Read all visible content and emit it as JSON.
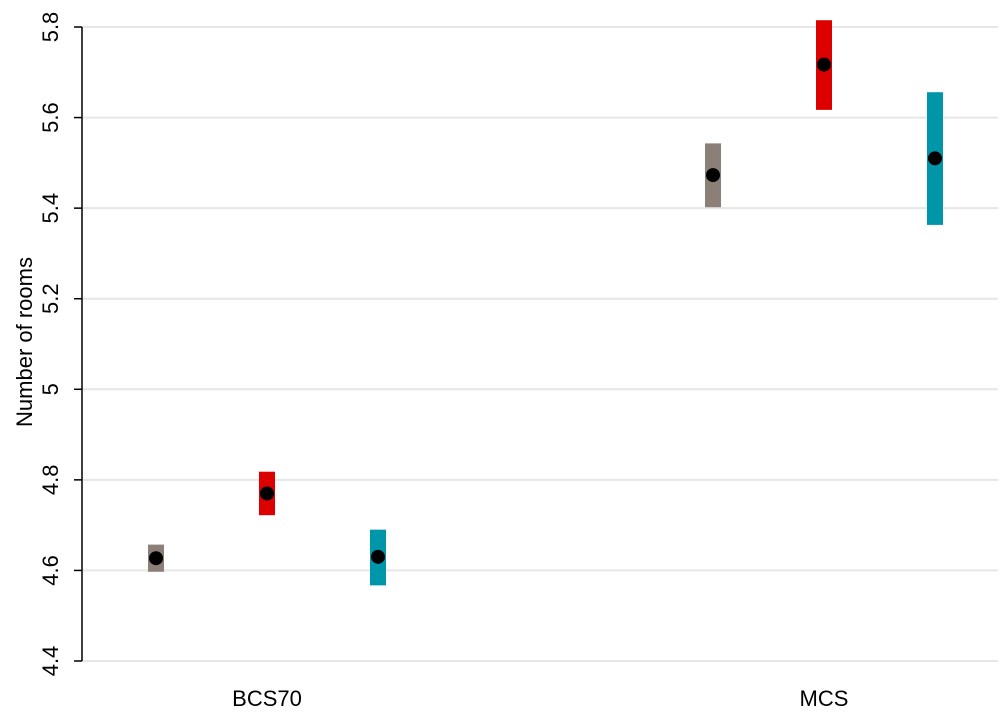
{
  "chart_data": {
    "type": "scatter",
    "ylabel": "Number of rooms",
    "xlabel": "",
    "title": "",
    "ylim": [
      4.4,
      5.8
    ],
    "yticks": [
      4.4,
      4.6,
      4.8,
      5,
      5.2,
      5.4,
      5.6,
      5.8
    ],
    "ytick_labels": [
      "4.4",
      "4.6",
      "4.8",
      "5",
      "5.2",
      "5.4",
      "5.6",
      "5.8"
    ],
    "grid": "horizontal",
    "categories": [
      "BCS70",
      "MCS"
    ],
    "series": [
      {
        "color": "#8c7f77",
        "points": [
          {
            "category": "BCS70",
            "value": 4.627,
            "low": 4.597,
            "high": 4.657
          },
          {
            "category": "MCS",
            "value": 5.473,
            "low": 5.402,
            "high": 5.543
          }
        ]
      },
      {
        "color": "#dd0000",
        "points": [
          {
            "category": "BCS70",
            "value": 4.77,
            "low": 4.722,
            "high": 4.818
          },
          {
            "category": "MCS",
            "value": 5.717,
            "low": 5.617,
            "high": 5.815
          }
        ]
      },
      {
        "color": "#0096aa",
        "points": [
          {
            "category": "BCS70",
            "value": 4.63,
            "low": 4.567,
            "high": 4.69
          },
          {
            "category": "MCS",
            "value": 5.51,
            "low": 5.363,
            "high": 5.656
          }
        ]
      }
    ]
  }
}
